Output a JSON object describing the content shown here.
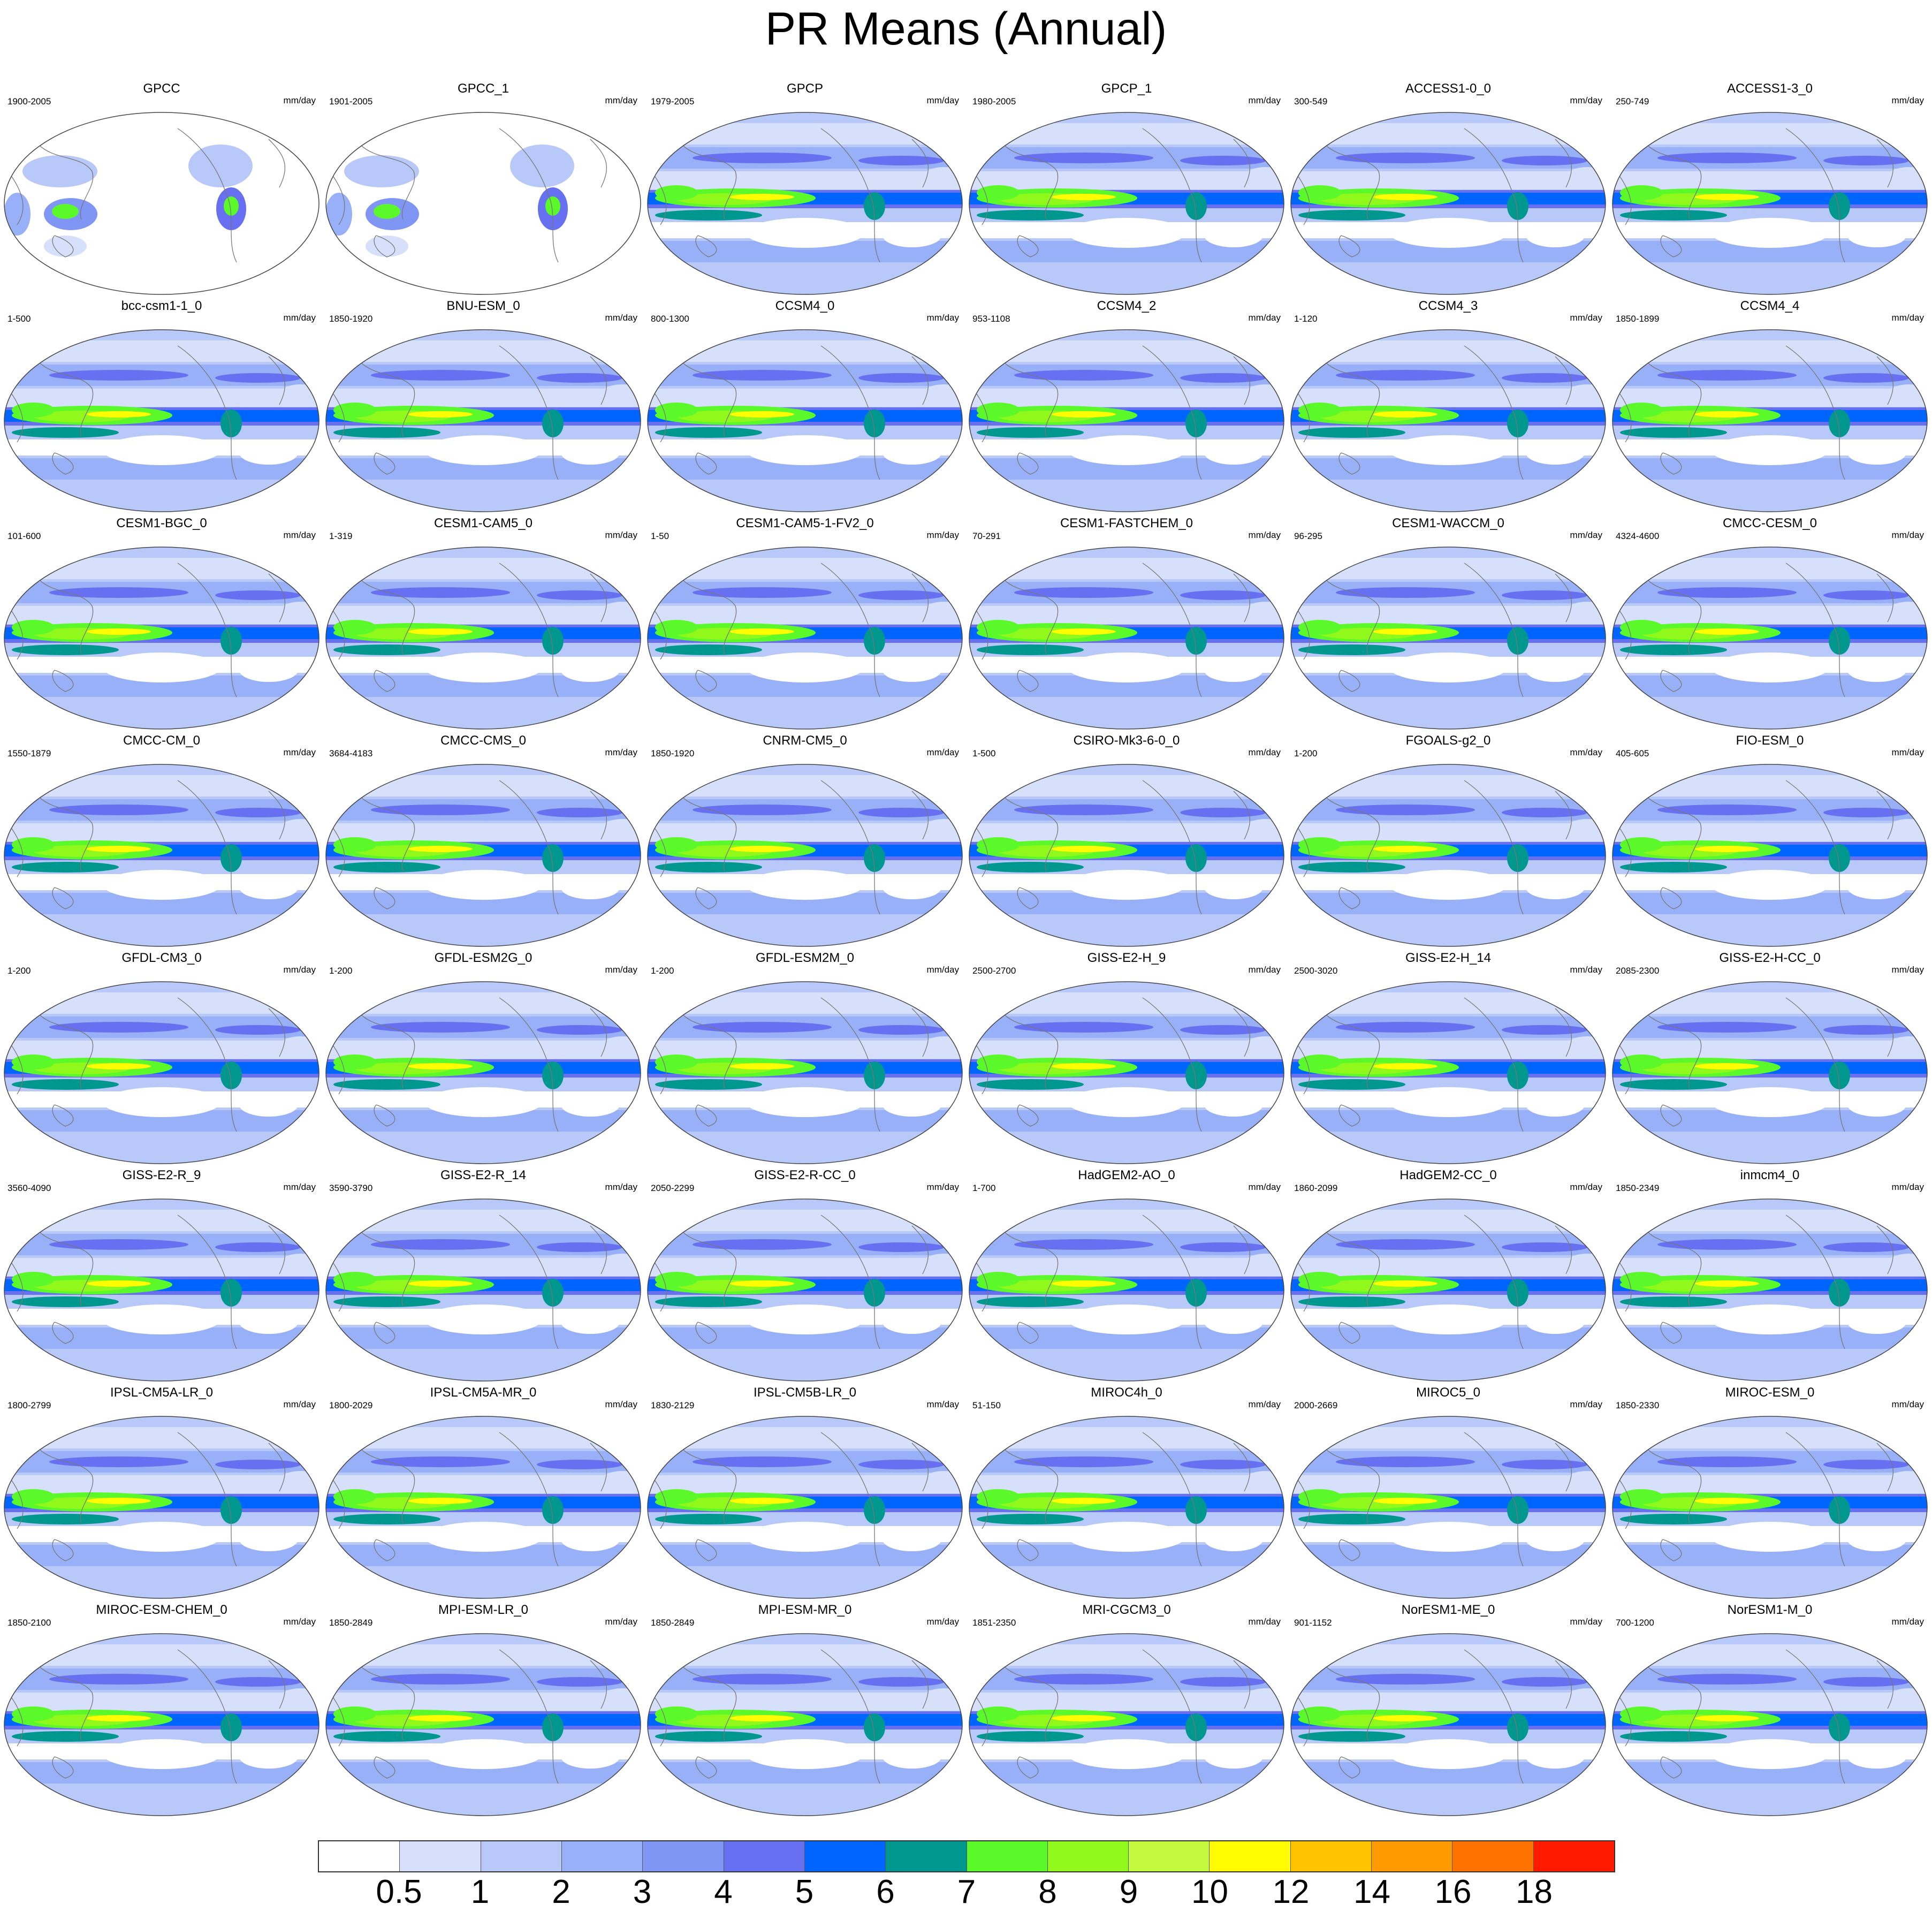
{
  "title": "PR Means (Annual)",
  "units": "mm/day",
  "colorbar": {
    "colors": [
      "#ffffff",
      "#d6e0fb",
      "#b7c8f9",
      "#98b0f7",
      "#7f96f4",
      "#6770f1",
      "#0064ff",
      "#00978e",
      "#5cf92a",
      "#91f81c",
      "#c4f93e",
      "#fffd00",
      "#ffc300",
      "#ff9b00",
      "#ff7200",
      "#ff1a00"
    ],
    "labels": [
      "0.5",
      "1",
      "2",
      "3",
      "4",
      "5",
      "6",
      "7",
      "8",
      "9",
      "10",
      "12",
      "14",
      "16",
      "18"
    ]
  },
  "panels": [
    {
      "name": "GPCC",
      "years": "1900-2005"
    },
    {
      "name": "GPCC_1",
      "years": "1901-2005"
    },
    {
      "name": "GPCP",
      "years": "1979-2005"
    },
    {
      "name": "GPCP_1",
      "years": "1980-2005"
    },
    {
      "name": "ACCESS1-0_0",
      "years": "300-549"
    },
    {
      "name": "ACCESS1-3_0",
      "years": "250-749"
    },
    {
      "name": "bcc-csm1-1_0",
      "years": "1-500"
    },
    {
      "name": "BNU-ESM_0",
      "years": "1850-1920"
    },
    {
      "name": "CCSM4_0",
      "years": "800-1300"
    },
    {
      "name": "CCSM4_2",
      "years": "953-1108"
    },
    {
      "name": "CCSM4_3",
      "years": "1-120"
    },
    {
      "name": "CCSM4_4",
      "years": "1850-1899"
    },
    {
      "name": "CESM1-BGC_0",
      "years": "101-600"
    },
    {
      "name": "CESM1-CAM5_0",
      "years": "1-319"
    },
    {
      "name": "CESM1-CAM5-1-FV2_0",
      "years": "1-50"
    },
    {
      "name": "CESM1-FASTCHEM_0",
      "years": "70-291"
    },
    {
      "name": "CESM1-WACCM_0",
      "years": "96-295"
    },
    {
      "name": "CMCC-CESM_0",
      "years": "4324-4600"
    },
    {
      "name": "CMCC-CM_0",
      "years": "1550-1879"
    },
    {
      "name": "CMCC-CMS_0",
      "years": "3684-4183"
    },
    {
      "name": "CNRM-CM5_0",
      "years": "1850-1920"
    },
    {
      "name": "CSIRO-Mk3-6-0_0",
      "years": "1-500"
    },
    {
      "name": "FGOALS-g2_0",
      "years": "1-200"
    },
    {
      "name": "FIO-ESM_0",
      "years": "405-605"
    },
    {
      "name": "GFDL-CM3_0",
      "years": "1-200"
    },
    {
      "name": "GFDL-ESM2G_0",
      "years": "1-200"
    },
    {
      "name": "GFDL-ESM2M_0",
      "years": "1-200"
    },
    {
      "name": "GISS-E2-H_9",
      "years": "2500-2700"
    },
    {
      "name": "GISS-E2-H_14",
      "years": "2500-3020"
    },
    {
      "name": "GISS-E2-H-CC_0",
      "years": "2085-2300"
    },
    {
      "name": "GISS-E2-R_9",
      "years": "3560-4090"
    },
    {
      "name": "GISS-E2-R_14",
      "years": "3590-3790"
    },
    {
      "name": "GISS-E2-R-CC_0",
      "years": "2050-2299"
    },
    {
      "name": "HadGEM2-AO_0",
      "years": "1-700"
    },
    {
      "name": "HadGEM2-CC_0",
      "years": "1860-2099"
    },
    {
      "name": "inmcm4_0",
      "years": "1850-2349"
    },
    {
      "name": "IPSL-CM5A-LR_0",
      "years": "1800-2799"
    },
    {
      "name": "IPSL-CM5A-MR_0",
      "years": "1800-2029"
    },
    {
      "name": "IPSL-CM5B-LR_0",
      "years": "1830-2129"
    },
    {
      "name": "MIROC4h_0",
      "years": "51-150"
    },
    {
      "name": "MIROC5_0",
      "years": "2000-2669"
    },
    {
      "name": "MIROC-ESM_0",
      "years": "1850-2330"
    },
    {
      "name": "MIROC-ESM-CHEM_0",
      "years": "1850-2100"
    },
    {
      "name": "MPI-ESM-LR_0",
      "years": "1850-2849"
    },
    {
      "name": "MPI-ESM-MR_0",
      "years": "1850-2849"
    },
    {
      "name": "MRI-CGCM3_0",
      "years": "1851-2350"
    },
    {
      "name": "NorESM1-ME_0",
      "years": "901-1152"
    },
    {
      "name": "NorESM1-M_0",
      "years": "700-1200"
    }
  ]
}
